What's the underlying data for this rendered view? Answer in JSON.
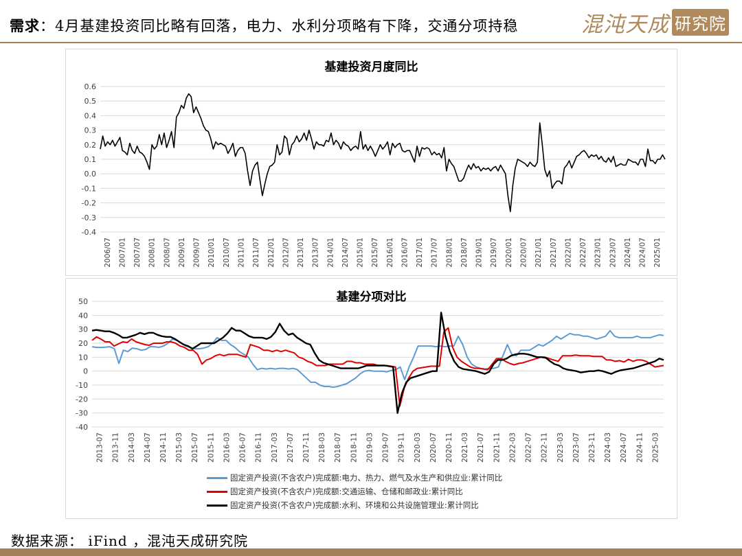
{
  "header": {
    "lead": "需求",
    "title": "：4月基建投资同比略有回落，电力、水利分项略有下降，交通分项持稳",
    "logo_text": "混沌天成",
    "logo_seal": "研究院"
  },
  "footer": {
    "source": "数据来源： iFind ，混沌天成研究院"
  },
  "colors": {
    "accent": "#a57f57",
    "series_blue": "#5b9bd5",
    "series_red": "#e00000",
    "series_black": "#000000"
  },
  "chart_data": [
    {
      "type": "line",
      "title": "基建投资月度同比",
      "ylim": [
        -0.4,
        0.6
      ],
      "yticks": [
        "0.6",
        "0.5",
        "0.4",
        "0.3",
        "0.2",
        "0.1",
        "0.0",
        "-0.1",
        "-0.2",
        "-0.3",
        "-0.4"
      ],
      "xticks": [
        "2006/07",
        "2007/01",
        "2007/07",
        "2008/01",
        "2008/07",
        "2009/01",
        "2009/07",
        "2010/01",
        "2010/07",
        "2011/01",
        "2011/07",
        "2012/01",
        "2012/07",
        "2013/01",
        "2013/07",
        "2014/01",
        "2014/07",
        "2015/01",
        "2015/07",
        "2016/01",
        "2016/07",
        "2017/01",
        "2017/07",
        "2018/01",
        "2018/07",
        "2019/01",
        "2019/07",
        "2020/01",
        "2020/07",
        "2021/01",
        "2021/07",
        "2022/01",
        "2022/07",
        "2023/01",
        "2023/07",
        "2024/01",
        "2024/07",
        "2025/01"
      ],
      "x_start": "2006/07",
      "series": [
        {
          "values": [
            0.17,
            0.26,
            0.19,
            0.22,
            0.2,
            0.23,
            0.19,
            0.22,
            0.25,
            0.16,
            0.15,
            0.13,
            0.21,
            0.16,
            0.14,
            0.19,
            0.15,
            0.14,
            0.12,
            0.08,
            0.03,
            0.2,
            0.17,
            0.19,
            0.27,
            0.2,
            0.28,
            0.18,
            0.23,
            0.29,
            0.18,
            0.39,
            0.42,
            0.47,
            0.45,
            0.52,
            0.55,
            0.53,
            0.42,
            0.46,
            0.42,
            0.38,
            0.33,
            0.3,
            0.29,
            0.24,
            0.17,
            0.22,
            0.2,
            0.21,
            0.2,
            0.19,
            0.14,
            0.17,
            0.21,
            0.12,
            0.16,
            0.18,
            0.18,
            0.14,
            0.02,
            -0.08,
            0.02,
            0.06,
            0.08,
            -0.04,
            -0.15,
            -0.07,
            0.0,
            0.05,
            0.06,
            0.08,
            0.2,
            0.13,
            0.15,
            0.26,
            0.24,
            0.13,
            0.2,
            0.22,
            0.26,
            0.22,
            0.24,
            0.28,
            0.23,
            0.3,
            0.24,
            0.17,
            0.22,
            0.2,
            0.2,
            0.19,
            0.23,
            0.22,
            0.28,
            0.2,
            0.23,
            0.21,
            0.17,
            0.22,
            0.2,
            0.19,
            0.16,
            0.18,
            0.19,
            0.17,
            0.29,
            0.17,
            0.2,
            0.16,
            0.19,
            0.16,
            0.12,
            0.16,
            0.2,
            0.17,
            0.19,
            0.22,
            0.13,
            0.21,
            0.18,
            0.2,
            0.21,
            0.16,
            0.15,
            0.16,
            0.16,
            0.12,
            0.08,
            0.19,
            0.12,
            0.18,
            0.17,
            0.18,
            0.17,
            0.13,
            0.15,
            0.13,
            0.14,
            0.11,
            0.18,
            0.02,
            0.1,
            0.07,
            0.05,
            0.0,
            -0.05,
            -0.05,
            -0.03,
            0.02,
            0.06,
            0.03,
            0.07,
            0.04,
            0.05,
            0.02,
            0.04,
            0.03,
            0.04,
            0.02,
            0.04,
            0.05,
            0.02,
            0.06,
            0.03,
            0.0,
            -0.15,
            -0.26,
            -0.08,
            0.04,
            0.1,
            0.09,
            0.08,
            0.07,
            0.05,
            0.08,
            0.06,
            0.05,
            0.08,
            0.35,
            0.2,
            0.03,
            -0.02,
            0.02,
            -0.1,
            -0.07,
            -0.05,
            -0.05,
            -0.07,
            0.04,
            0.06,
            0.09,
            0.04,
            0.08,
            0.12,
            0.13,
            0.15,
            0.16,
            0.14,
            0.11,
            0.13,
            0.12,
            0.13,
            0.1,
            0.12,
            0.09,
            0.08,
            0.11,
            0.08,
            0.12,
            0.05,
            0.06,
            0.07,
            0.06,
            0.06,
            0.1,
            0.09,
            0.08,
            0.08,
            0.06,
            0.1,
            0.1,
            0.05,
            0.17,
            0.09,
            0.09,
            0.07,
            0.1,
            0.1,
            0.13,
            0.1
          ]
        }
      ]
    },
    {
      "type": "line",
      "title": "基建分项对比",
      "ylim": [
        -40,
        50
      ],
      "yticks": [
        "50",
        "40",
        "30",
        "20",
        "10",
        "0",
        "-10",
        "-20",
        "-30",
        "-40"
      ],
      "xticks": [
        "2013-07",
        "2013-11",
        "2014-03",
        "2014-07",
        "2014-11",
        "2015-03",
        "2015-07",
        "2015-11",
        "2016-03",
        "2016-07",
        "2016-11",
        "2017-03",
        "2017-07",
        "2017-11",
        "2018-03",
        "2018-07",
        "2018-11",
        "2019-03",
        "2019-07",
        "2019-11",
        "2020-03",
        "2020-07",
        "2020-11",
        "2021-03",
        "2021-07",
        "2021-11",
        "2022-03",
        "2022-07",
        "2022-11",
        "2023-03",
        "2023-07",
        "2023-11",
        "2024-03",
        "2024-07",
        "2024-11",
        "2025-03"
      ],
      "x_start": "2013-07",
      "series": [
        {
          "name": "固定资产投资(不含农户)完成额:电力、热力、燃气及水生产和供应业:累计同比",
          "values": [
            17.5,
            17,
            17,
            17.2,
            17.5,
            16,
            5.5,
            15,
            14,
            16.5,
            16,
            15,
            15.5,
            17.5,
            17.5,
            17,
            18,
            20,
            23,
            22,
            20,
            18,
            17,
            16,
            16,
            16.5,
            17.5,
            20,
            24,
            22,
            22,
            19,
            17,
            14,
            12,
            10,
            5,
            1,
            2,
            1.5,
            2,
            1.5,
            2,
            2,
            1.5,
            2,
            1,
            -2,
            -5,
            -8,
            -8,
            -10,
            -11,
            -11,
            -11.5,
            -11,
            -10,
            -9,
            -7,
            -5,
            -2,
            0,
            0.5,
            0,
            0,
            0,
            -0.5,
            0.5,
            1,
            3,
            -6,
            3,
            10,
            18,
            18,
            18,
            18,
            17.5,
            18,
            17.5,
            18,
            18,
            25,
            19,
            10,
            5,
            3,
            2,
            1.5,
            2,
            2,
            3,
            11,
            19,
            12,
            11,
            15,
            15,
            15,
            17,
            19,
            18,
            20,
            22,
            25,
            23,
            25,
            27,
            26,
            26,
            25,
            25,
            24,
            23,
            24,
            25,
            29,
            25,
            24,
            24,
            24,
            24,
            25,
            24,
            24,
            24,
            25,
            26,
            25.5
          ]
        },
        {
          "name": "固定资产投资(不含农户)完成额:交通运输、仓储和邮政业:累计同比",
          "values": [
            22,
            24.5,
            23,
            21,
            21,
            18,
            19.5,
            21,
            20.5,
            23,
            21,
            20,
            19,
            18.5,
            20,
            20,
            20,
            21,
            21,
            20,
            18,
            17,
            15,
            15,
            12,
            5,
            8,
            9,
            11,
            12,
            11,
            12,
            12,
            12,
            11,
            10,
            19,
            18,
            17,
            15,
            15,
            14,
            15,
            14,
            15,
            14,
            13,
            10,
            9,
            7,
            6,
            4,
            4,
            4,
            5,
            5,
            5,
            5,
            7,
            7,
            6,
            6,
            5,
            5,
            5,
            4,
            4,
            4,
            3.5,
            3,
            -25,
            -12,
            -5,
            0,
            2,
            2.5,
            3,
            3.5,
            3.5,
            3.5,
            28,
            31,
            17,
            10,
            7,
            5,
            3,
            2,
            2,
            1.5,
            1,
            5,
            9,
            9,
            7,
            5.5,
            4.5,
            5.5,
            6,
            7,
            8,
            9,
            10,
            10,
            9,
            8,
            7,
            11,
            11,
            11,
            11.5,
            11,
            11,
            11,
            10.5,
            10.5,
            10.5,
            8,
            8,
            7,
            7.5,
            6.5,
            8.5,
            7,
            8,
            8,
            7,
            5,
            3,
            3.5,
            4
          ]
        },
        {
          "name": "固定资产投资(不含农户)完成额:水利、环境和公共设施管理业:累计同比",
          "values": [
            29,
            29.5,
            29,
            28.5,
            28.5,
            27.5,
            26,
            24,
            24,
            25,
            26,
            27.5,
            26.5,
            27.5,
            27.5,
            26,
            25,
            24.5,
            24.5,
            23,
            21,
            19,
            18,
            16,
            18,
            20,
            20,
            20,
            20,
            22,
            24,
            27,
            31,
            29,
            29,
            27,
            25,
            24,
            24,
            24,
            23,
            24.5,
            28,
            34,
            29,
            26,
            27,
            24,
            22,
            20,
            19,
            13,
            8,
            6,
            5,
            4,
            3,
            2,
            2,
            2,
            2,
            2,
            3,
            4,
            4,
            4,
            4,
            4,
            3.5,
            3,
            -30,
            -16,
            -8,
            -5,
            -4,
            -3,
            -2,
            -1,
            0,
            0,
            42,
            25,
            14,
            7,
            3,
            1.5,
            1,
            0.5,
            0,
            -1,
            -2,
            -0.5,
            5,
            8,
            8,
            9,
            11,
            12,
            12.5,
            12.5,
            12,
            11,
            10,
            10,
            9.5,
            7,
            5,
            4,
            2,
            1,
            0.5,
            0,
            -1,
            -0.5,
            0,
            0,
            0.5,
            0,
            -1,
            -2,
            -0.5,
            0.5,
            1,
            1.5,
            2,
            3,
            4,
            5,
            6,
            7,
            9,
            8
          ]
        }
      ]
    }
  ]
}
